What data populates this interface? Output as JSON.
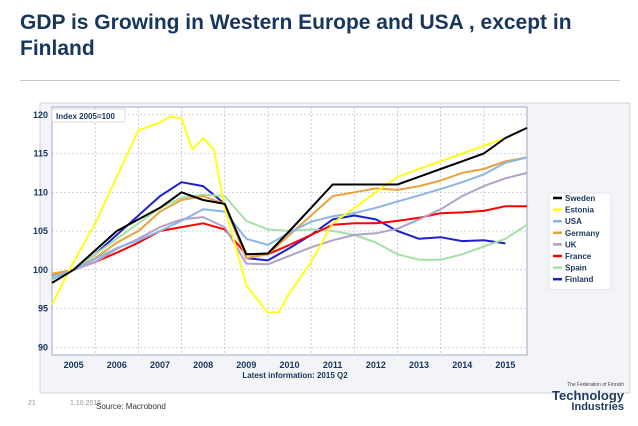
{
  "slide": {
    "title": "GDP is Growing in Western Europe and USA , except in Finland",
    "page_number": "21",
    "date": "1.10.2015",
    "source": "Source: Macrobond",
    "logo": {
      "small_text": "The Federation of Finnish",
      "line1": "Technology",
      "line2": "Industries"
    }
  },
  "chart_data": {
    "type": "line",
    "annotation": "Index 2005=100",
    "xlabel": "Latest information: 2015 Q2",
    "ylabel": "",
    "xlim": [
      2004.5,
      2015.5
    ],
    "ylim": [
      89,
      121
    ],
    "y_ticks": [
      90,
      95,
      100,
      105,
      110,
      115,
      120
    ],
    "x_ticks": [
      2005,
      2006,
      2007,
      2008,
      2009,
      2010,
      2011,
      2012,
      2013,
      2014,
      2015
    ],
    "legend_position": "right",
    "series": [
      {
        "name": "Sweden",
        "color": "#000000",
        "x": [
          2004.5,
          2005,
          2005.5,
          2006,
          2006.5,
          2007,
          2007.5,
          2008,
          2008.5,
          2009,
          2009.5,
          2010,
          2010.5,
          2011,
          2011.5,
          2012,
          2012.5,
          2013,
          2013.5,
          2014,
          2014.5,
          2015,
          2015.5
        ],
        "values": [
          98.3,
          100,
          102.5,
          105,
          106.5,
          108,
          110,
          109,
          108.5,
          102,
          102.1,
          105,
          108,
          111,
          111,
          111,
          111,
          112,
          113,
          114,
          115,
          117,
          118.3
        ]
      },
      {
        "name": "Estonia",
        "color": "#ffff1a",
        "x": [
          2004.5,
          2005,
          2005.5,
          2006,
          2006.5,
          2007,
          2007.25,
          2007.5,
          2007.75,
          2008,
          2008.25,
          2008.5,
          2008.75,
          2009,
          2009.5,
          2009.75,
          2010,
          2010.5,
          2011,
          2011.5,
          2012,
          2012.5,
          2013,
          2013.5,
          2014,
          2014.5,
          2015
        ],
        "values": [
          95.5,
          101,
          106,
          112,
          118,
          119,
          119.8,
          119.5,
          115.5,
          117,
          115.5,
          108,
          103,
          98,
          94.5,
          94.5,
          97,
          101,
          106,
          108,
          110,
          112,
          113,
          114,
          115,
          116,
          117
        ]
      },
      {
        "name": "USA",
        "color": "#8db4e2",
        "x": [
          2004.5,
          2005,
          2005.5,
          2006,
          2006.5,
          2007,
          2007.5,
          2008,
          2008.5,
          2009,
          2009.5,
          2010,
          2010.5,
          2011,
          2011.5,
          2012,
          2012.5,
          2013,
          2013.5,
          2014,
          2014.5,
          2015,
          2015.5
        ],
        "values": [
          98.8,
          100,
          101.4,
          102.8,
          103.8,
          105,
          106.3,
          107.8,
          107.5,
          104,
          103.2,
          104.8,
          106.2,
          106.9,
          107.3,
          108,
          108.8,
          109.6,
          110.4,
          111.3,
          112.3,
          113.8,
          114.5
        ]
      },
      {
        "name": "Germany",
        "color": "#e8a33a",
        "x": [
          2004.5,
          2005,
          2005.5,
          2006,
          2006.5,
          2007,
          2007.5,
          2008,
          2008.5,
          2009,
          2009.5,
          2010,
          2010.5,
          2011,
          2011.5,
          2012,
          2012.5,
          2013,
          2013.5,
          2014,
          2014.5,
          2015,
          2015.5
        ],
        "values": [
          99.5,
          100,
          101.5,
          103.5,
          105,
          107.5,
          109,
          109.5,
          108.5,
          101.5,
          102,
          104.5,
          107,
          109.5,
          110,
          110.5,
          110.3,
          110.8,
          111.5,
          112.5,
          113,
          114,
          114.5
        ]
      },
      {
        "name": "UK",
        "color": "#b2a1c7",
        "x": [
          2004.5,
          2005,
          2005.5,
          2006,
          2006.5,
          2007,
          2007.5,
          2008,
          2008.5,
          2009,
          2009.5,
          2010,
          2010.5,
          2011,
          2011.5,
          2012,
          2012.5,
          2013,
          2013.5,
          2014,
          2014.5,
          2015,
          2015.5
        ],
        "values": [
          99.3,
          100,
          101,
          102.7,
          104,
          105.5,
          106.5,
          106.8,
          105.5,
          100.8,
          100.7,
          101.8,
          102.9,
          103.8,
          104.5,
          104.7,
          105.3,
          106.5,
          107.8,
          109.5,
          110.8,
          111.8,
          112.5
        ]
      },
      {
        "name": "France",
        "color": "#ff0000",
        "x": [
          2004.5,
          2005,
          2005.5,
          2006,
          2006.5,
          2007,
          2007.5,
          2008,
          2008.5,
          2009,
          2009.5,
          2010,
          2010.5,
          2011,
          2011.5,
          2012,
          2012.5,
          2013,
          2013.5,
          2014,
          2014.5,
          2015,
          2015.5
        ],
        "values": [
          99.3,
          100,
          101,
          102.2,
          103.5,
          105,
          105.5,
          106,
          105.2,
          102,
          102,
          103.2,
          104.5,
          105.8,
          106,
          106,
          106.3,
          106.7,
          107.3,
          107.4,
          107.6,
          108.2,
          108.2
        ]
      },
      {
        "name": "Spain",
        "color": "#a6e0a6",
        "x": [
          2004.5,
          2005,
          2005.5,
          2006,
          2006.5,
          2007,
          2007.5,
          2008,
          2008.5,
          2009,
          2009.5,
          2010,
          2010.5,
          2011,
          2011.5,
          2012,
          2012.5,
          2013,
          2013.5,
          2014,
          2014.5,
          2015,
          2015.5
        ],
        "values": [
          99,
          100,
          102,
          104,
          106,
          108,
          109.3,
          109.7,
          109.5,
          106.3,
          105.2,
          105,
          105.2,
          105,
          104.5,
          103.5,
          102,
          101.3,
          101.3,
          102,
          103,
          104,
          105.8
        ]
      },
      {
        "name": "Finland",
        "color": "#1f1fcc",
        "x": [
          2004.5,
          2005,
          2005.5,
          2006,
          2006.5,
          2007,
          2007.5,
          2008,
          2008.5,
          2009,
          2009.5,
          2010,
          2010.5,
          2011,
          2011.5,
          2012,
          2012.5,
          2013,
          2013.5,
          2014,
          2014.5,
          2015
        ],
        "values": [
          99.2,
          100,
          102,
          104.5,
          107,
          109.5,
          111.3,
          110.8,
          108.5,
          101.5,
          101.2,
          102.8,
          104.5,
          106.5,
          107,
          106.5,
          105,
          104,
          104.2,
          103.7,
          103.8,
          103.4
        ]
      }
    ]
  }
}
